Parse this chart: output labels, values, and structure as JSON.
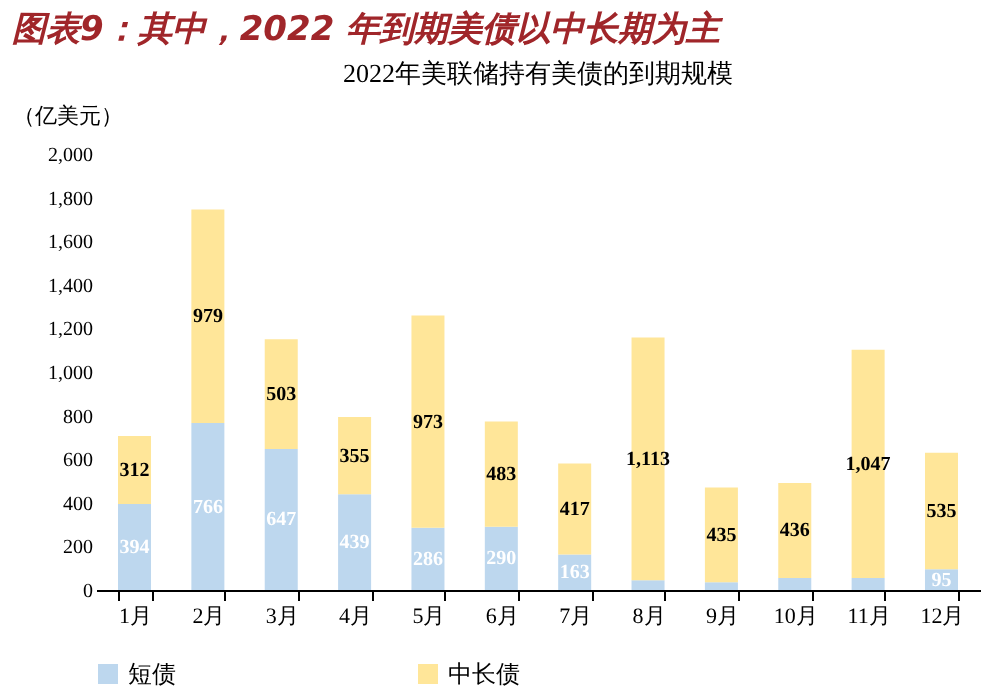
{
  "chart_data": {
    "type": "bar",
    "stacked": true,
    "title": "图表9：其中，2022 年到期美债以中长期为主",
    "subtitle": "2022年美联储持有美债的到期规模",
    "ylabel": "（亿美元）",
    "categories": [
      "1月",
      "2月",
      "3月",
      "4月",
      "5月",
      "6月",
      "7月",
      "8月",
      "9月",
      "10月",
      "11月",
      "12月"
    ],
    "series": [
      {
        "name": "短债",
        "color": "#bdd7ee",
        "values": [
          394,
          766,
          647,
          439,
          286,
          290,
          163,
          45,
          35,
          55,
          55,
          95
        ],
        "value_labels": [
          "394",
          "766",
          "647",
          "439",
          "286",
          "290",
          "163",
          null,
          null,
          null,
          null,
          "95"
        ]
      },
      {
        "name": "中长债",
        "color": "#ffe699",
        "values": [
          312,
          979,
          503,
          355,
          973,
          483,
          417,
          1113,
          435,
          436,
          1047,
          535
        ],
        "value_labels": [
          "312",
          "979",
          "503",
          "355",
          "973",
          "483",
          "417",
          "1,113",
          "435",
          "436",
          "1,047",
          "535"
        ]
      }
    ],
    "ylim": [
      0,
      2000
    ],
    "yticks": [
      {
        "value": 0,
        "label": "0"
      },
      {
        "value": 200,
        "label": "200"
      },
      {
        "value": 400,
        "label": "400"
      },
      {
        "value": 600,
        "label": "600"
      },
      {
        "value": 800,
        "label": "800"
      },
      {
        "value": 1000,
        "label": "1,000"
      },
      {
        "value": 1200,
        "label": "1,200"
      },
      {
        "value": 1400,
        "label": "1,400"
      },
      {
        "value": 1600,
        "label": "1,600"
      },
      {
        "value": 1800,
        "label": "1,800"
      },
      {
        "value": 2000,
        "label": "2,000"
      }
    ],
    "grid": false,
    "legend": "bottom"
  }
}
